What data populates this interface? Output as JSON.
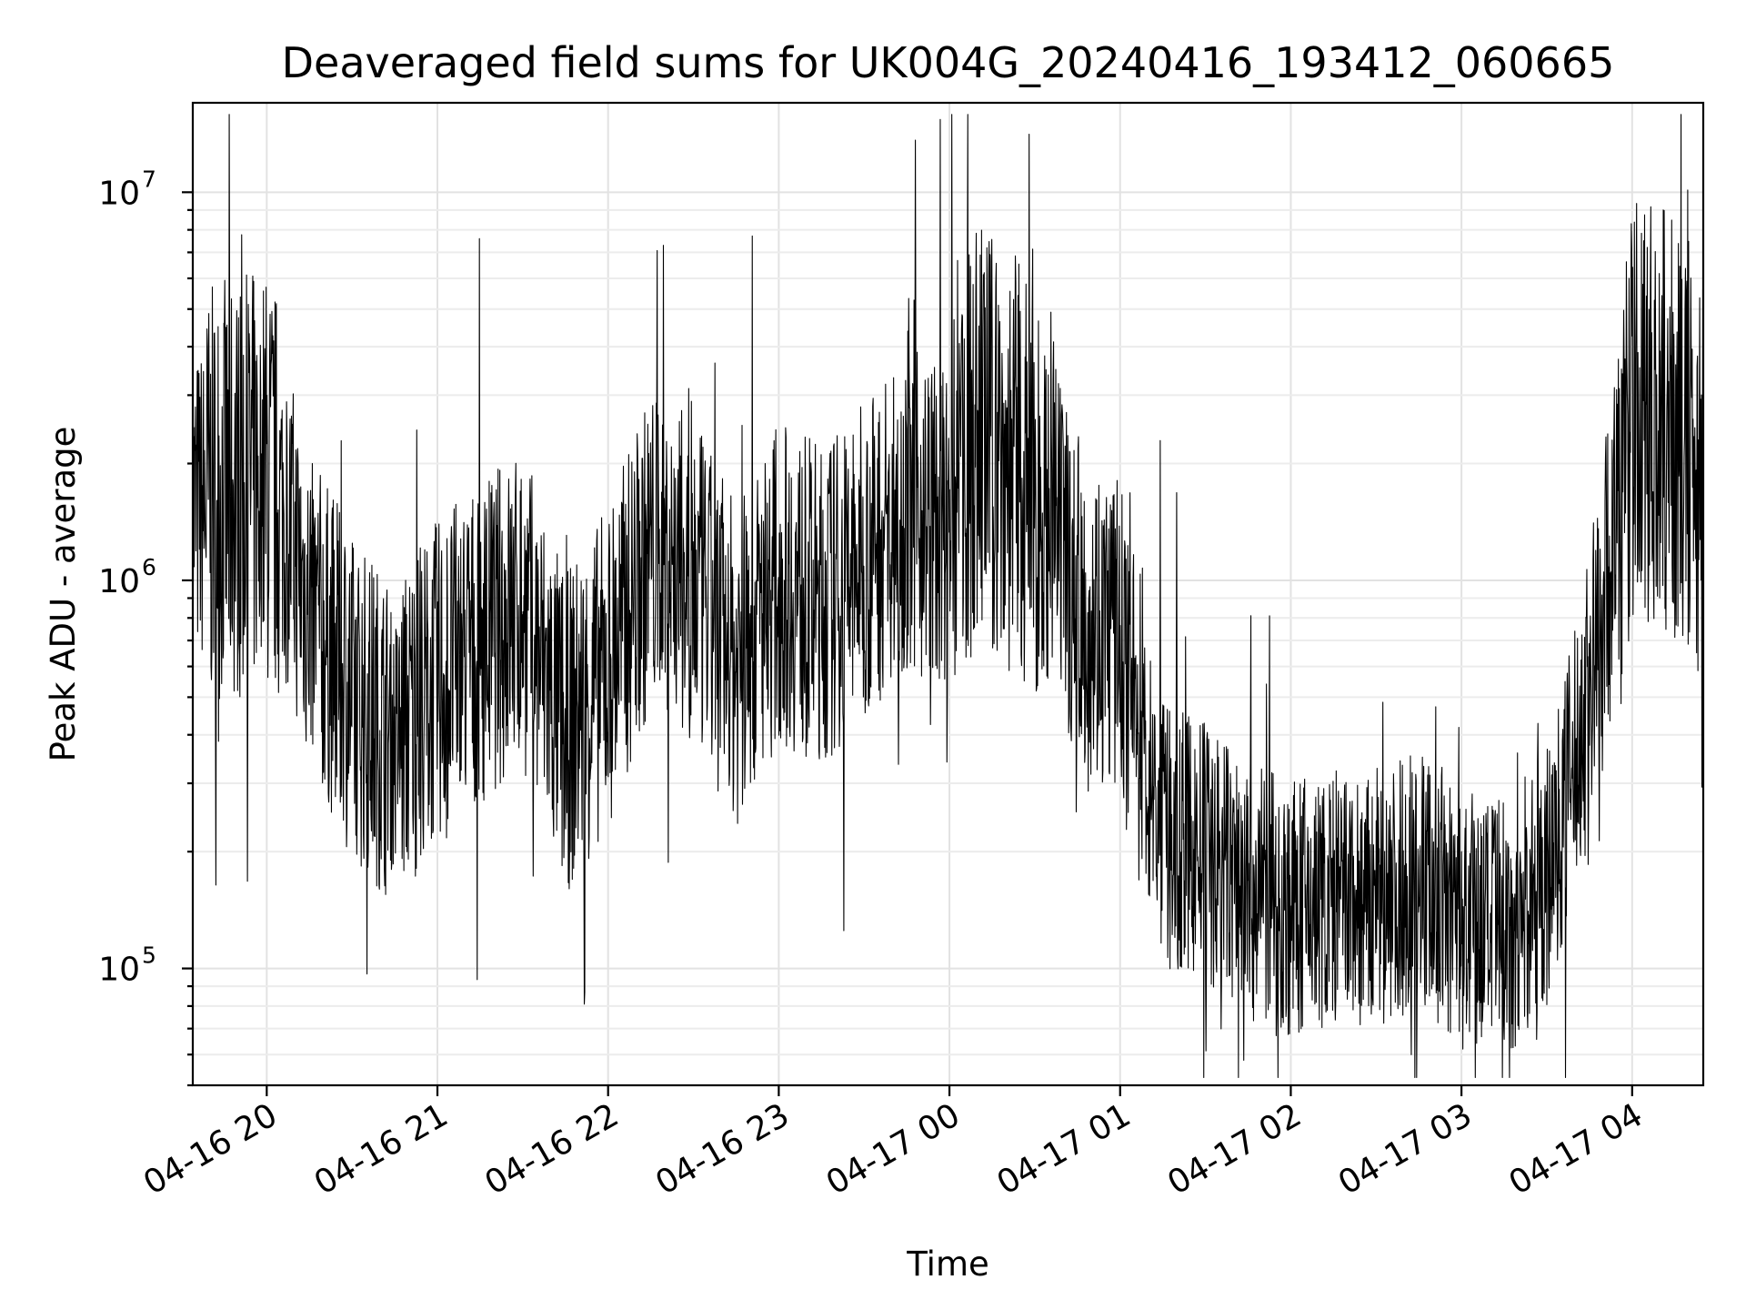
{
  "chart_data": {
    "type": "line",
    "title": "Deaveraged field sums for UK004G_20240416_193412_060665",
    "xlabel": "Time",
    "ylabel": "Peak ADU - average",
    "yscale": "log",
    "grid": true,
    "legend": "none",
    "line_color": "#000000",
    "xlim": [
      "2024-04-16T19:34",
      "2024-04-17T04:25"
    ],
    "ylim": [
      50000,
      17000000
    ],
    "x_ticks": [
      {
        "value": "2024-04-16T20:00",
        "label": "04-16 20"
      },
      {
        "value": "2024-04-16T21:00",
        "label": "04-16 21"
      },
      {
        "value": "2024-04-16T22:00",
        "label": "04-16 22"
      },
      {
        "value": "2024-04-16T23:00",
        "label": "04-16 23"
      },
      {
        "value": "2024-04-17T00:00",
        "label": "04-17 00"
      },
      {
        "value": "2024-04-17T01:00",
        "label": "04-17 01"
      },
      {
        "value": "2024-04-17T02:00",
        "label": "04-17 02"
      },
      {
        "value": "2024-04-17T03:00",
        "label": "04-17 03"
      },
      {
        "value": "2024-04-17T04:00",
        "label": "04-17 04"
      }
    ],
    "y_ticks": [
      {
        "value": 100000,
        "base": "10",
        "exp": "5"
      },
      {
        "value": 1000000,
        "base": "10",
        "exp": "6"
      },
      {
        "value": 10000000,
        "base": "10",
        "exp": "7"
      }
    ],
    "series": [
      {
        "x": [
          "2024-04-16T19:34",
          "2024-04-16T19:45",
          "2024-04-16T20:00",
          "2024-04-16T20:06",
          "2024-04-16T20:15",
          "2024-04-16T20:30",
          "2024-04-16T20:45",
          "2024-04-16T21:00",
          "2024-04-16T21:15",
          "2024-04-16T21:30",
          "2024-04-16T21:45",
          "2024-04-16T22:00",
          "2024-04-16T22:15",
          "2024-04-16T22:30",
          "2024-04-16T22:45",
          "2024-04-16T23:00",
          "2024-04-16T23:15",
          "2024-04-16T23:30",
          "2024-04-16T23:45",
          "2024-04-17T00:00",
          "2024-04-17T00:10",
          "2024-04-17T00:20",
          "2024-04-17T00:30",
          "2024-04-17T00:45",
          "2024-04-17T01:00",
          "2024-04-17T01:15",
          "2024-04-17T01:30",
          "2024-04-17T01:45",
          "2024-04-17T02:00",
          "2024-04-17T02:15",
          "2024-04-17T02:30",
          "2024-04-17T02:45",
          "2024-04-17T03:00",
          "2024-04-17T03:15",
          "2024-04-17T03:30",
          "2024-04-17T03:45",
          "2024-04-17T04:00",
          "2024-04-17T04:10",
          "2024-04-17T04:25"
        ],
        "y": [
          1500000,
          1700000,
          1800000,
          1500000,
          850000,
          500000,
          380000,
          550000,
          700000,
          850000,
          400000,
          600000,
          1200000,
          1000000,
          600000,
          1000000,
          850000,
          1100000,
          1600000,
          1300000,
          2500000,
          2000000,
          1800000,
          900000,
          700000,
          220000,
          200000,
          160000,
          140000,
          150000,
          140000,
          180000,
          130000,
          125000,
          170000,
          500000,
          2700000,
          2600000,
          2000000
        ]
      }
    ]
  }
}
